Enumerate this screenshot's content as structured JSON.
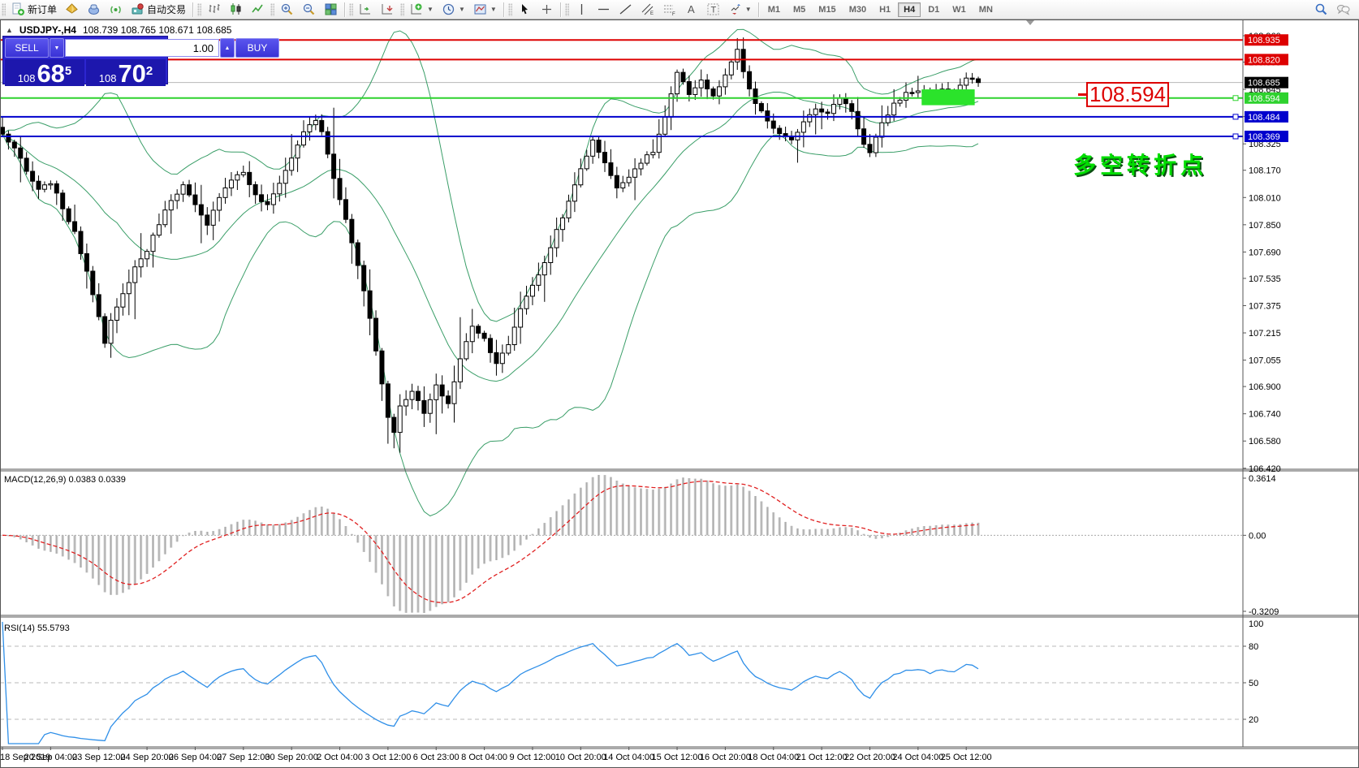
{
  "toolbar": {
    "groups": [
      {
        "items": [
          {
            "name": "new-order-button",
            "icon": "new-order",
            "label": "新订单"
          },
          {
            "name": "market-watch-button",
            "icon": "gold-diamond"
          },
          {
            "name": "metaeditor-button",
            "icon": "metaeditor"
          },
          {
            "name": "signals-button",
            "icon": "signals"
          },
          {
            "name": "autotrading-button",
            "icon": "autotrading",
            "label": "自动交易"
          }
        ]
      },
      {
        "items": [
          {
            "name": "bar-chart-button",
            "icon": "bars-chart"
          },
          {
            "name": "candle-chart-button",
            "icon": "candles-chart"
          },
          {
            "name": "line-chart-button",
            "icon": "line-chart"
          }
        ]
      },
      {
        "items": [
          {
            "name": "zoom-in-button",
            "icon": "zoom-in"
          },
          {
            "name": "zoom-out-button",
            "icon": "zoom-out"
          },
          {
            "name": "tile-windows-button",
            "icon": "tiles"
          }
        ]
      },
      {
        "items": [
          {
            "name": "auto-scroll-button",
            "icon": "autoscroll"
          },
          {
            "name": "chart-shift-button",
            "icon": "chartshift"
          }
        ]
      },
      {
        "items": [
          {
            "name": "indicators-button",
            "icon": "indicators",
            "dropdown": true
          },
          {
            "name": "periods-button",
            "icon": "clock",
            "dropdown": true
          },
          {
            "name": "templates-button",
            "icon": "template",
            "dropdown": true
          }
        ]
      },
      {
        "items": [
          {
            "name": "cursor-button",
            "icon": "cursor"
          },
          {
            "name": "crosshair-button",
            "icon": "crosshair"
          }
        ]
      },
      {
        "items": [
          {
            "name": "vertical-line-button",
            "icon": "vline"
          },
          {
            "name": "horizontal-line-button",
            "icon": "hline"
          },
          {
            "name": "trendline-button",
            "icon": "tline"
          },
          {
            "name": "channel-button",
            "icon": "channel"
          },
          {
            "name": "fibonacci-button",
            "icon": "fibo"
          },
          {
            "name": "text-button",
            "icon": "text-a"
          },
          {
            "name": "text-label-button",
            "icon": "text-t"
          },
          {
            "name": "arrows-button",
            "icon": "arrows",
            "dropdown": true
          }
        ]
      }
    ],
    "timeframes": [
      "M1",
      "M5",
      "M15",
      "M30",
      "H1",
      "H4",
      "D1",
      "W1",
      "MN"
    ],
    "active_timeframe": "H4",
    "right_icons": [
      {
        "name": "search-button",
        "icon": "search"
      },
      {
        "name": "chat-button",
        "icon": "chat"
      }
    ]
  },
  "window": {
    "collapse_icon": "▲",
    "title_symbol": "USDJPY-,H4",
    "title_ohlc": "108.739 108.765 108.671 108.685"
  },
  "one_click": {
    "sell_label": "SELL",
    "buy_label": "BUY",
    "volume": "1.00",
    "price_prefix": "108",
    "sell_big": "68",
    "sell_sup": "5",
    "buy_big": "70",
    "buy_sup": "2",
    "spin_down": "▼",
    "spin_up": "▲"
  },
  "annotations": {
    "price_callout": "108.594",
    "cn_note": "多空转折点"
  },
  "macd_panel": {
    "label": "MACD(12,26,9) 0.0383 0.0339",
    "axis_max": "0.3614",
    "axis_zero": "0.00",
    "axis_min": "-0.3209"
  },
  "rsi_panel": {
    "label": "RSI(14) 55.5793",
    "axis_top": "100",
    "levels": [
      80,
      50,
      20
    ]
  },
  "chart_data": {
    "type": "candlestick",
    "title": "USDJPY- H4",
    "bars": 163,
    "ylim": [
      106.42,
      108.96
    ],
    "price_ticks": [
      "108.960",
      "108.805",
      "108.645",
      "108.485",
      "108.325",
      "108.170",
      "108.010",
      "107.850",
      "107.690",
      "107.535",
      "107.375",
      "107.215",
      "107.055",
      "106.900",
      "106.740",
      "106.580",
      "106.420"
    ],
    "x_labels": [
      "18 Sep 2019",
      "20 Sep 04:00",
      "23 Sep 12:00",
      "24 Sep 20:00",
      "26 Sep 04:00",
      "27 Sep 12:00",
      "30 Sep 20:00",
      "2 Oct 04:00",
      "3 Oct 12:00",
      "6 Oct 23:00",
      "8 Oct 04:00",
      "9 Oct 12:00",
      "10 Oct 20:00",
      "14 Oct 04:00",
      "15 Oct 12:00",
      "16 Oct 20:00",
      "18 Oct 04:00",
      "21 Oct 12:00",
      "22 Oct 20:00",
      "24 Oct 04:00",
      "25 Oct 12:00"
    ],
    "label_every": 8,
    "close_anchors": [
      [
        0,
        108.38
      ],
      [
        2,
        108.3
      ],
      [
        4,
        108.16
      ],
      [
        6,
        108.05
      ],
      [
        8,
        108.1
      ],
      [
        10,
        107.95
      ],
      [
        12,
        107.8
      ],
      [
        14,
        107.58
      ],
      [
        16,
        107.32
      ],
      [
        17,
        107.15
      ],
      [
        18,
        107.28
      ],
      [
        20,
        107.44
      ],
      [
        22,
        107.6
      ],
      [
        24,
        107.7
      ],
      [
        26,
        107.86
      ],
      [
        28,
        108.0
      ],
      [
        30,
        108.08
      ],
      [
        32,
        107.96
      ],
      [
        34,
        107.84
      ],
      [
        36,
        108.02
      ],
      [
        38,
        108.12
      ],
      [
        40,
        108.16
      ],
      [
        42,
        108.02
      ],
      [
        44,
        107.96
      ],
      [
        46,
        108.1
      ],
      [
        48,
        108.24
      ],
      [
        50,
        108.4
      ],
      [
        52,
        108.46
      ],
      [
        53,
        108.4
      ],
      [
        55,
        108.12
      ],
      [
        57,
        107.88
      ],
      [
        59,
        107.62
      ],
      [
        61,
        107.3
      ],
      [
        63,
        106.92
      ],
      [
        64,
        106.72
      ],
      [
        65,
        106.64
      ],
      [
        66,
        106.78
      ],
      [
        68,
        106.88
      ],
      [
        70,
        106.74
      ],
      [
        72,
        106.9
      ],
      [
        74,
        106.8
      ],
      [
        76,
        107.06
      ],
      [
        78,
        107.26
      ],
      [
        80,
        107.18
      ],
      [
        82,
        107.04
      ],
      [
        84,
        107.14
      ],
      [
        86,
        107.36
      ],
      [
        88,
        107.5
      ],
      [
        90,
        107.62
      ],
      [
        92,
        107.82
      ],
      [
        94,
        107.98
      ],
      [
        96,
        108.18
      ],
      [
        98,
        108.34
      ],
      [
        100,
        108.22
      ],
      [
        102,
        108.06
      ],
      [
        104,
        108.14
      ],
      [
        106,
        108.22
      ],
      [
        108,
        108.28
      ],
      [
        110,
        108.48
      ],
      [
        112,
        108.74
      ],
      [
        114,
        108.62
      ],
      [
        116,
        108.7
      ],
      [
        118,
        108.6
      ],
      [
        120,
        108.72
      ],
      [
        122,
        108.88
      ],
      [
        123,
        108.74
      ],
      [
        125,
        108.56
      ],
      [
        127,
        108.46
      ],
      [
        129,
        108.38
      ],
      [
        131,
        108.34
      ],
      [
        133,
        108.46
      ],
      [
        135,
        108.54
      ],
      [
        137,
        108.5
      ],
      [
        139,
        108.6
      ],
      [
        141,
        108.52
      ],
      [
        143,
        108.32
      ],
      [
        144,
        108.27
      ],
      [
        146,
        108.44
      ],
      [
        148,
        108.56
      ],
      [
        150,
        108.62
      ],
      [
        152,
        108.64
      ],
      [
        154,
        108.61
      ],
      [
        156,
        108.65
      ],
      [
        158,
        108.63
      ],
      [
        160,
        108.71
      ],
      [
        162,
        108.685
      ]
    ],
    "bollinger": {
      "period": 20,
      "deviation": 2,
      "color": "#3a9e68"
    },
    "macd": {
      "fast": 12,
      "slow": 26,
      "signal": 9,
      "hist_color": "#c6c6c6",
      "signal_color": "#e02020",
      "last_values": [
        0.0383,
        0.0339
      ]
    },
    "rsi": {
      "period": 14,
      "color": "#2f8fe8",
      "last_value": 55.5793
    },
    "current_price": {
      "value": "108.685",
      "line_color": "#b8b8b8",
      "badge_bg": "#000000"
    },
    "hlines": [
      {
        "price": 108.935,
        "label": "108.935",
        "color": "#dd0000",
        "handle": false
      },
      {
        "price": 108.82,
        "label": "108.820",
        "color": "#dd0000",
        "handle": false
      },
      {
        "price": 108.594,
        "label": "108.594",
        "color": "#2ed22e",
        "handle": true
      },
      {
        "price": 108.484,
        "label": "108.484",
        "color": "#0000cd",
        "handle": true
      },
      {
        "price": 108.369,
        "label": "108.369",
        "color": "#0000cd",
        "handle": true
      }
    ],
    "highlight_rect": {
      "bar_start": 153,
      "bar_end": 161,
      "price_top": 108.645,
      "price_bottom": 108.552,
      "color": "#2be32b"
    },
    "candle_up_fill": "#ffffff",
    "candle_down_fill": "#000000",
    "candle_stroke": "#000000"
  }
}
